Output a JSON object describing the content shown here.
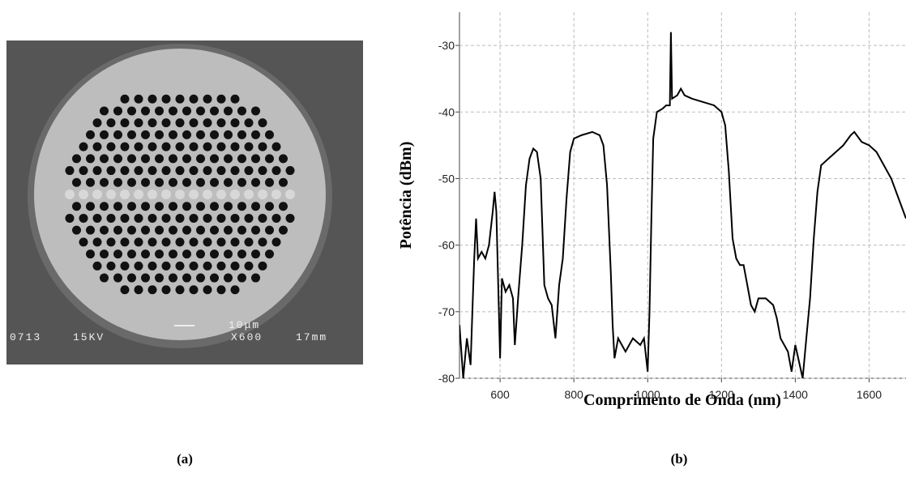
{
  "figure": {
    "panel_a": {
      "scale_label": "10μm",
      "info_left": "0713",
      "info_kv": "15KV",
      "info_mag": "X600",
      "info_wd": "17mm"
    },
    "captions": [
      "(a)",
      "(b)"
    ]
  },
  "chart_data": {
    "type": "line",
    "xlabel": "Comprimento de Onda (nm)",
    "ylabel": "Potência (dBm)",
    "x": [
      490,
      500,
      510,
      520,
      525,
      530,
      535,
      540,
      550,
      560,
      570,
      580,
      585,
      590,
      595,
      600,
      605,
      615,
      625,
      635,
      640,
      650,
      660,
      670,
      680,
      690,
      700,
      710,
      720,
      730,
      740,
      750,
      760,
      770,
      780,
      790,
      800,
      820,
      850,
      870,
      880,
      890,
      900,
      905,
      910,
      920,
      940,
      960,
      980,
      990,
      1000,
      1005,
      1010,
      1015,
      1025,
      1040,
      1050,
      1060,
      1063,
      1066,
      1080,
      1090,
      1100,
      1120,
      1150,
      1180,
      1200,
      1210,
      1220,
      1230,
      1240,
      1250,
      1260,
      1270,
      1280,
      1290,
      1300,
      1320,
      1340,
      1350,
      1360,
      1380,
      1390,
      1400,
      1420,
      1430,
      1440,
      1450,
      1460,
      1470,
      1490,
      1510,
      1530,
      1550,
      1560,
      1580,
      1600,
      1620,
      1640,
      1660,
      1680,
      1700
    ],
    "values": [
      -72,
      -80,
      -74,
      -78,
      -70,
      -62,
      -56,
      -62,
      -61,
      -62,
      -60,
      -55,
      -52,
      -55,
      -66,
      -77,
      -65,
      -67,
      -66,
      -68,
      -75,
      -67,
      -60,
      -51,
      -47,
      -45.5,
      -46,
      -50,
      -66,
      -68,
      -69,
      -74,
      -66,
      -62,
      -53,
      -46,
      -44,
      -43.5,
      -43,
      -43.5,
      -45,
      -51,
      -64,
      -72,
      -77,
      -74,
      -76,
      -74,
      -75,
      -74,
      -79,
      -70,
      -56,
      -44,
      -40,
      -39.5,
      -39,
      -39,
      -28,
      -38,
      -37.5,
      -36.5,
      -37.5,
      -38,
      -38.5,
      -39,
      -40,
      -42,
      -49,
      -59,
      -62,
      -63,
      -63,
      -66,
      -69,
      -70,
      -68,
      -68,
      -69,
      -71,
      -74,
      -76,
      -79,
      -75,
      -80,
      -74,
      -68,
      -59,
      -52,
      -48,
      -47,
      -46,
      -45,
      -43.5,
      -43,
      -44.5,
      -45,
      -46,
      -48,
      -50,
      -53,
      -56
    ],
    "color": "#000000",
    "xlim": [
      490,
      1700
    ],
    "xticks": [
      600,
      800,
      1000,
      1200,
      1400,
      1600
    ],
    "ylim": [
      -80,
      -25
    ],
    "yticks": [
      -80,
      -70,
      -60,
      -50,
      -40,
      -30
    ],
    "grid": true
  }
}
